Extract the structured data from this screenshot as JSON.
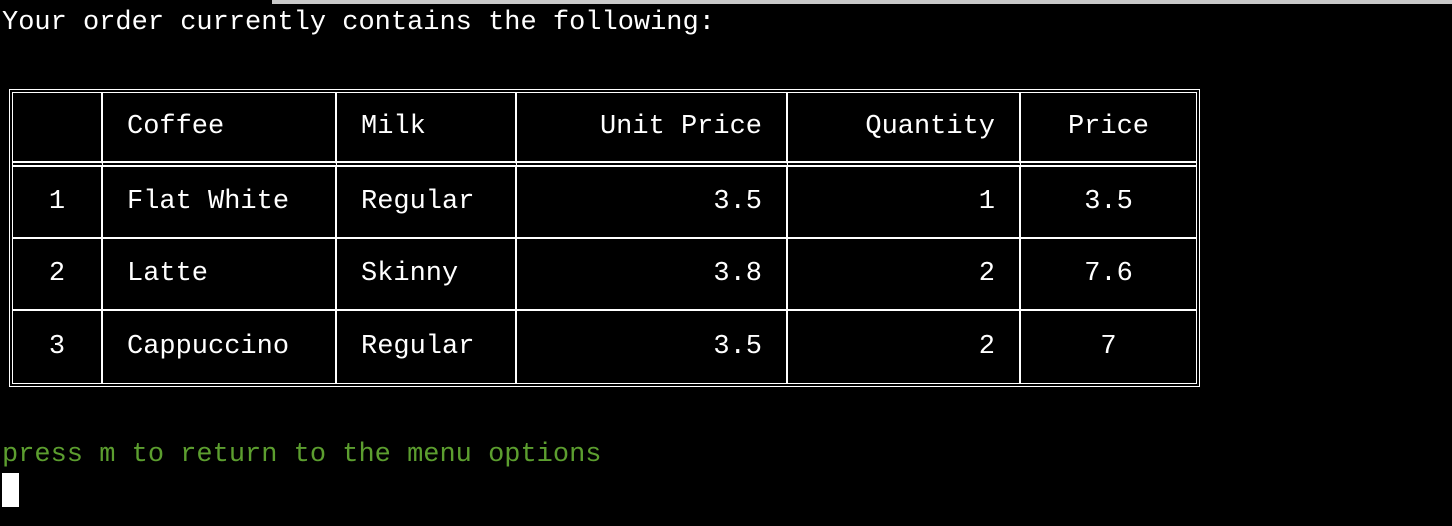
{
  "intro_text": "Your order currently contains the following:",
  "table": {
    "headers": {
      "index": "",
      "coffee": "Coffee",
      "milk": "Milk",
      "unit_price": "Unit Price",
      "quantity": "Quantity",
      "price": "Price"
    },
    "rows": [
      {
        "index": "1",
        "coffee": "Flat White",
        "milk": "Regular",
        "unit_price": "3.5",
        "quantity": "1",
        "price": "3.5"
      },
      {
        "index": "2",
        "coffee": "Latte",
        "milk": "Skinny",
        "unit_price": "3.8",
        "quantity": "2",
        "price": "7.6"
      },
      {
        "index": "3",
        "coffee": "Cappuccino",
        "milk": "Regular",
        "unit_price": "3.5",
        "quantity": "2",
        "price": "7"
      }
    ]
  },
  "prompt_text": "press m to return to the menu options",
  "colors": {
    "background": "#000000",
    "text": "#ffffff",
    "prompt": "#5c9e2f"
  }
}
